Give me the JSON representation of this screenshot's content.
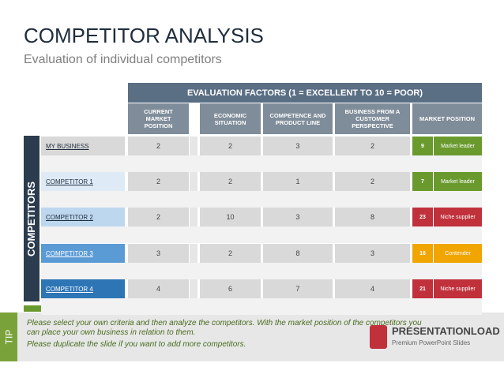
{
  "header": {
    "title": "COMPETITOR ANALYSIS",
    "subtitle": "Evaluation of individual competitors"
  },
  "table": {
    "group_header": "EVALUATION FACTORS (1 = EXCELLENT TO 10 = POOR)",
    "side_label": "COMPETITORS",
    "columns": [
      "CURRENT MARKET POSITION",
      "ECONOMIC SITUATION",
      "COMPETENCE AND PRODUCT LINE",
      "BUSINESS FROM A CUSTOMER PERSPECTIVE",
      "MARKET POSITION"
    ],
    "rows": [
      {
        "name": "MY BUSINESS",
        "values": [
          "2",
          "2",
          "3",
          "2"
        ],
        "score": "9",
        "position": "Market leader",
        "color": "#6a9a2e"
      },
      {
        "name": "COMPETITOR 1",
        "values": [
          "2",
          "2",
          "1",
          "2"
        ],
        "score": "7",
        "position": "Market leader",
        "color": "#6a9a2e"
      },
      {
        "name": "COMPETITOR 2",
        "values": [
          "2",
          "10",
          "3",
          "8"
        ],
        "score": "23",
        "position": "Niche supplier",
        "color": "#c0313b"
      },
      {
        "name": "COMPETITOR 3",
        "values": [
          "3",
          "2",
          "8",
          "3"
        ],
        "score": "16",
        "position": "Contender",
        "color": "#f0a500"
      },
      {
        "name": "COMPETITOR 4",
        "values": [
          "4",
          "6",
          "7",
          "4"
        ],
        "score": "21",
        "position": "Niche supplier",
        "color": "#c0313b"
      }
    ]
  },
  "tip": {
    "label": "TIP",
    "lines": [
      "Please select your own criteria and then analyze the competitors. With the market position of the competitors you can place your own business in relation to them.",
      "Please duplicate the slide if you want to add more competitors."
    ]
  },
  "logo": {
    "name": "PRESENTATIONLOAD",
    "tagline": "Premium PowerPoint Slides"
  }
}
